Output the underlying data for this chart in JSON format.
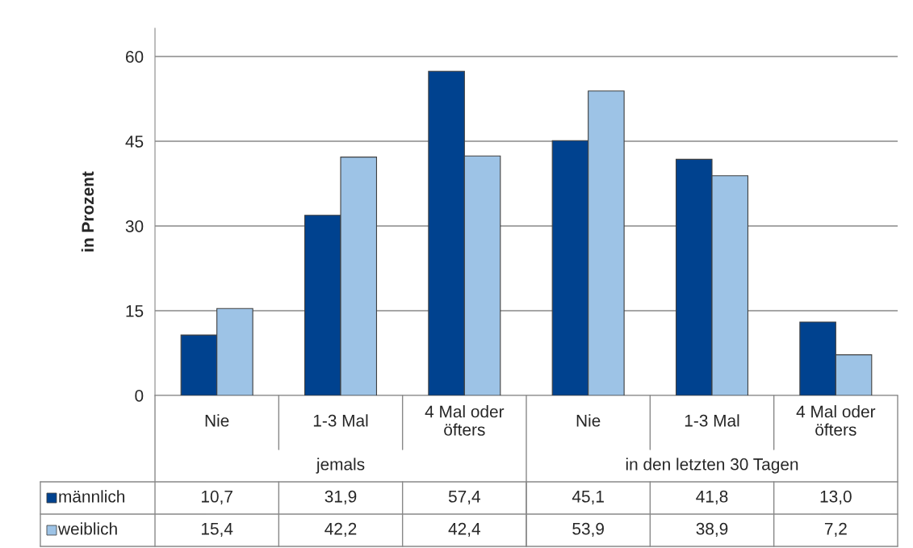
{
  "chart_data": {
    "type": "bar",
    "ylabel": "in Prozent",
    "categories": [
      "Nie",
      "1-3 Mal",
      "4 Mal oder\nöfters",
      "Nie",
      "1-3 Mal",
      "4 Mal oder\nöfters"
    ],
    "series": [
      {
        "name": "männlich",
        "color": "#00428f",
        "values": [
          10.7,
          31.9,
          57.4,
          45.1,
          41.8,
          13.0
        ],
        "value_labels": [
          "10,7",
          "31,9",
          "57,4",
          "45,1",
          "41,8",
          "13,0"
        ]
      },
      {
        "name": "weiblich",
        "color": "#9dc3e6",
        "values": [
          15.4,
          42.2,
          42.4,
          53.9,
          38.9,
          7.2
        ],
        "value_labels": [
          "15,4",
          "42,2",
          "42,4",
          "53,9",
          "38,9",
          "7,2"
        ]
      }
    ],
    "annotations": [
      "jemals",
      "in den letzten 30 Tagen"
    ],
    "ylim": [
      0,
      65
    ],
    "yticks": [
      0,
      15,
      30,
      45,
      60
    ],
    "grid": "y",
    "legend": "bottom"
  }
}
